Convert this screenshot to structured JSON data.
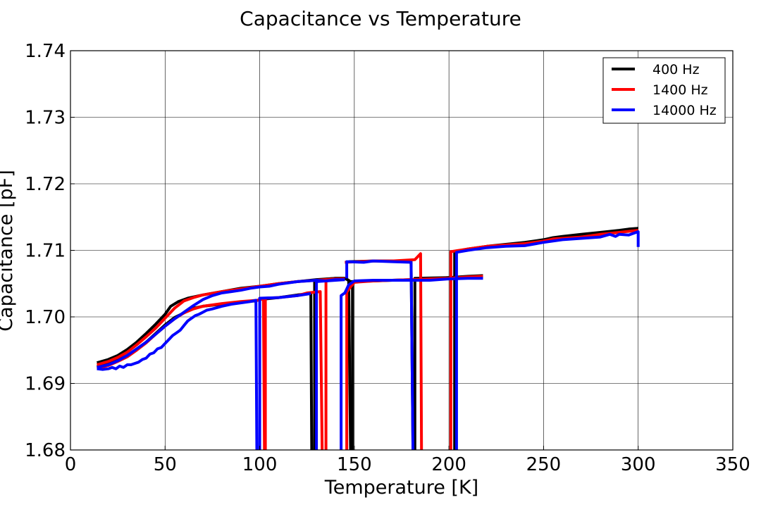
{
  "chart_data": {
    "type": "line",
    "title": "Capacitance vs Temperature",
    "xlabel": "Temperature [K]",
    "ylabel": "Capacitance [pF]",
    "xlim": [
      0,
      350
    ],
    "ylim": [
      1.68,
      1.74
    ],
    "xticks": [
      "0",
      "50",
      "100",
      "150",
      "200",
      "250",
      "300",
      "350"
    ],
    "yticks": [
      "1.68",
      "1.69",
      "1.70",
      "1.71",
      "1.72",
      "1.73",
      "1.74"
    ],
    "grid": true,
    "legend_position": "top-right",
    "series": [
      {
        "name": "400 Hz",
        "color": "#000000",
        "segments": [
          [
            [
              14,
              1.6931
            ],
            [
              20,
              1.6936
            ],
            [
              25,
              1.6942
            ],
            [
              30,
              1.6951
            ],
            [
              35,
              1.6962
            ],
            [
              40,
              1.6975
            ],
            [
              45,
              1.6989
            ],
            [
              50,
              1.7004
            ],
            [
              53,
              1.7016
            ],
            [
              57,
              1.7023
            ],
            [
              62,
              1.7028
            ],
            [
              70,
              1.7033
            ],
            [
              80,
              1.7038
            ],
            [
              90,
              1.7043
            ],
            [
              100,
              1.7046
            ],
            [
              110,
              1.705
            ],
            [
              120,
              1.7053
            ],
            [
              130,
              1.7056
            ],
            [
              140,
              1.7058
            ],
            [
              145,
              1.7058
            ],
            [
              148,
              1.7053
            ],
            [
              160,
              1.7054
            ],
            [
              170,
              1.7055
            ],
            [
              180,
              1.7056
            ],
            [
              190,
              1.7057
            ],
            [
              200,
              1.7059
            ],
            [
              210,
              1.7061
            ],
            [
              218,
              1.7062
            ]
          ],
          [
            [
              14,
              1.6925
            ],
            [
              20,
              1.693
            ],
            [
              25,
              1.6935
            ],
            [
              30,
              1.6942
            ],
            [
              35,
              1.6951
            ],
            [
              40,
              1.6962
            ],
            [
              45,
              1.6975
            ],
            [
              50,
              1.6988
            ],
            [
              55,
              1.6999
            ],
            [
              60,
              1.7006
            ],
            [
              65,
              1.7013
            ],
            [
              70,
              1.7016
            ],
            [
              80,
              1.7019
            ],
            [
              90,
              1.7022
            ],
            [
              98,
              1.7024
            ],
            [
              100,
              1.7026
            ],
            [
              110,
              1.7029
            ],
            [
              120,
              1.7033
            ],
            [
              127,
              1.7035
            ],
            [
              127.5,
              1.68
            ]
          ],
          [
            [
              129,
              1.68
            ],
            [
              129,
              1.7055
            ],
            [
              140,
              1.7058
            ],
            [
              145,
              1.7058
            ]
          ],
          [
            [
              145,
              1.7058
            ],
            [
              147,
              1.7055
            ],
            [
              148,
              1.68
            ]
          ],
          [
            [
              149,
              1.68
            ],
            [
              149,
              1.7053
            ]
          ],
          [
            [
              147,
              1.7083
            ],
            [
              160,
              1.7084
            ],
            [
              170,
              1.7084
            ],
            [
              180,
              1.7083
            ],
            [
              181,
              1.68
            ]
          ],
          [
            [
              182,
              1.68
            ],
            [
              182,
              1.7058
            ],
            [
              200,
              1.7059
            ]
          ],
          [
            [
              203,
              1.68
            ],
            [
              203,
              1.7098
            ],
            [
              210,
              1.7102
            ],
            [
              220,
              1.7106
            ],
            [
              230,
              1.7109
            ],
            [
              240,
              1.7112
            ],
            [
              250,
              1.7116
            ],
            [
              255,
              1.7119
            ],
            [
              260,
              1.7121
            ],
            [
              270,
              1.7124
            ],
            [
              280,
              1.7127
            ],
            [
              290,
              1.713
            ],
            [
              295,
              1.7132
            ],
            [
              300,
              1.7133
            ]
          ]
        ]
      },
      {
        "name": "1400 Hz",
        "color": "#ff0000",
        "segments": [
          [
            [
              14,
              1.6928
            ],
            [
              20,
              1.6933
            ],
            [
              25,
              1.6939
            ],
            [
              30,
              1.6947
            ],
            [
              35,
              1.6958
            ],
            [
              40,
              1.697
            ],
            [
              45,
              1.6983
            ],
            [
              50,
              1.6998
            ],
            [
              55,
              1.7013
            ],
            [
              60,
              1.7024
            ],
            [
              65,
              1.7029
            ],
            [
              70,
              1.7033
            ],
            [
              80,
              1.7038
            ],
            [
              90,
              1.7042
            ],
            [
              100,
              1.7046
            ],
            [
              110,
              1.705
            ],
            [
              120,
              1.7053
            ],
            [
              130,
              1.7055
            ],
            [
              140,
              1.7057
            ],
            [
              145,
              1.7057
            ]
          ],
          [
            [
              14,
              1.6922
            ],
            [
              20,
              1.6927
            ],
            [
              25,
              1.6933
            ],
            [
              30,
              1.694
            ],
            [
              35,
              1.695
            ],
            [
              40,
              1.6961
            ],
            [
              45,
              1.6974
            ],
            [
              50,
              1.6986
            ],
            [
              55,
              1.6997
            ],
            [
              60,
              1.7006
            ],
            [
              65,
              1.7012
            ],
            [
              70,
              1.7016
            ],
            [
              80,
              1.702
            ],
            [
              90,
              1.7023
            ],
            [
              99,
              1.7025
            ],
            [
              100,
              1.7026
            ],
            [
              102,
              1.7027
            ],
            [
              102.5,
              1.68
            ]
          ],
          [
            [
              103,
              1.68
            ],
            [
              103,
              1.7028
            ],
            [
              110,
              1.7029
            ],
            [
              120,
              1.7032
            ],
            [
              125,
              1.7036
            ],
            [
              132,
              1.7038
            ],
            [
              133,
              1.68
            ]
          ],
          [
            [
              135,
              1.68
            ],
            [
              135,
              1.7055
            ],
            [
              145,
              1.7057
            ]
          ],
          [
            [
              145,
              1.7082
            ],
            [
              160,
              1.7084
            ],
            [
              170,
              1.7084
            ],
            [
              182,
              1.7086
            ],
            [
              185,
              1.7095
            ],
            [
              185.5,
              1.68
            ]
          ],
          [
            [
              146,
              1.68
            ],
            [
              146,
              1.7037
            ],
            [
              148,
              1.7045
            ],
            [
              150,
              1.7052
            ],
            [
              160,
              1.7054
            ],
            [
              170,
              1.7055
            ],
            [
              180,
              1.7056
            ],
            [
              190,
              1.7057
            ],
            [
              200,
              1.7058
            ],
            [
              210,
              1.706
            ],
            [
              218,
              1.7061
            ]
          ],
          [
            [
              201,
              1.68
            ],
            [
              201,
              1.7098
            ],
            [
              210,
              1.7102
            ],
            [
              220,
              1.7106
            ],
            [
              230,
              1.7108
            ],
            [
              240,
              1.711
            ],
            [
              250,
              1.7114
            ],
            [
              255,
              1.7117
            ],
            [
              260,
              1.7118
            ],
            [
              270,
              1.712
            ],
            [
              280,
              1.7124
            ],
            [
              290,
              1.7127
            ],
            [
              300,
              1.713
            ]
          ]
        ]
      },
      {
        "name": "14000 Hz",
        "color": "#0000ff",
        "segments": [
          [
            [
              14,
              1.6922
            ],
            [
              17,
              1.6921
            ],
            [
              20,
              1.6922
            ],
            [
              22,
              1.6924
            ],
            [
              24,
              1.6922
            ],
            [
              26,
              1.6926
            ],
            [
              28,
              1.6924
            ],
            [
              30,
              1.6928
            ],
            [
              32,
              1.6928
            ],
            [
              34,
              1.693
            ],
            [
              36,
              1.6932
            ],
            [
              38,
              1.6936
            ],
            [
              40,
              1.6938
            ],
            [
              42,
              1.6944
            ],
            [
              44,
              1.6946
            ],
            [
              46,
              1.6952
            ],
            [
              48,
              1.6954
            ],
            [
              50,
              1.696
            ],
            [
              52,
              1.6966
            ],
            [
              54,
              1.6972
            ],
            [
              56,
              1.6976
            ],
            [
              58,
              1.698
            ],
            [
              60,
              1.6987
            ],
            [
              62,
              1.6994
            ],
            [
              64,
              1.6998
            ],
            [
              66,
              1.7002
            ],
            [
              68,
              1.7004
            ],
            [
              70,
              1.7007
            ],
            [
              72,
              1.701
            ],
            [
              75,
              1.7012
            ],
            [
              80,
              1.7016
            ],
            [
              85,
              1.7019
            ],
            [
              90,
              1.7021
            ],
            [
              95,
              1.7023
            ],
            [
              98,
              1.7025
            ],
            [
              98.5,
              1.68
            ]
          ],
          [
            [
              14,
              1.6924
            ],
            [
              20,
              1.6928
            ],
            [
              25,
              1.6934
            ],
            [
              30,
              1.6942
            ],
            [
              35,
              1.6952
            ],
            [
              40,
              1.6962
            ],
            [
              45,
              1.6974
            ],
            [
              50,
              1.6986
            ],
            [
              55,
              1.6997
            ],
            [
              60,
              1.7007
            ],
            [
              65,
              1.7017
            ],
            [
              70,
              1.7026
            ],
            [
              75,
              1.7032
            ],
            [
              80,
              1.7036
            ],
            [
              85,
              1.7038
            ],
            [
              90,
              1.704
            ],
            [
              95,
              1.7043
            ],
            [
              100,
              1.7045
            ],
            [
              105,
              1.7046
            ],
            [
              110,
              1.7049
            ],
            [
              115,
              1.7051
            ],
            [
              120,
              1.7053
            ],
            [
              125,
              1.7054
            ],
            [
              130,
              1.7055
            ],
            [
              135,
              1.7054
            ],
            [
              140,
              1.7056
            ],
            [
              145,
              1.7056
            ]
          ],
          [
            [
              100,
              1.68
            ],
            [
              100,
              1.7028
            ],
            [
              110,
              1.7029
            ],
            [
              120,
              1.7032
            ],
            [
              127,
              1.7035
            ]
          ],
          [
            [
              130,
              1.68
            ],
            [
              130,
              1.7053
            ],
            [
              145,
              1.7056
            ]
          ],
          [
            [
              143,
              1.68
            ],
            [
              143,
              1.7032
            ],
            [
              145,
              1.7036
            ],
            [
              147,
              1.7048
            ],
            [
              150,
              1.7054
            ],
            [
              160,
              1.7055
            ],
            [
              170,
              1.7055
            ],
            [
              180,
              1.7055
            ],
            [
              190,
              1.7055
            ],
            [
              200,
              1.7057
            ],
            [
              210,
              1.7058
            ],
            [
              218,
              1.7058
            ]
          ],
          [
            [
              146,
              1.7058
            ],
            [
              146,
              1.7083
            ],
            [
              155,
              1.7082
            ],
            [
              160,
              1.7084
            ],
            [
              170,
              1.7083
            ],
            [
              180,
              1.7082
            ],
            [
              181,
              1.68
            ]
          ],
          [
            [
              204,
              1.68
            ],
            [
              204,
              1.7097
            ],
            [
              210,
              1.71
            ],
            [
              220,
              1.7104
            ],
            [
              230,
              1.7106
            ],
            [
              240,
              1.7107
            ],
            [
              250,
              1.7112
            ],
            [
              255,
              1.7114
            ],
            [
              260,
              1.7116
            ],
            [
              270,
              1.7118
            ],
            [
              280,
              1.712
            ],
            [
              285,
              1.7124
            ],
            [
              288,
              1.7121
            ],
            [
              290,
              1.7124
            ],
            [
              295,
              1.7123
            ],
            [
              298,
              1.7126
            ],
            [
              300,
              1.7128
            ],
            [
              300,
              1.7105
            ]
          ]
        ]
      }
    ]
  }
}
